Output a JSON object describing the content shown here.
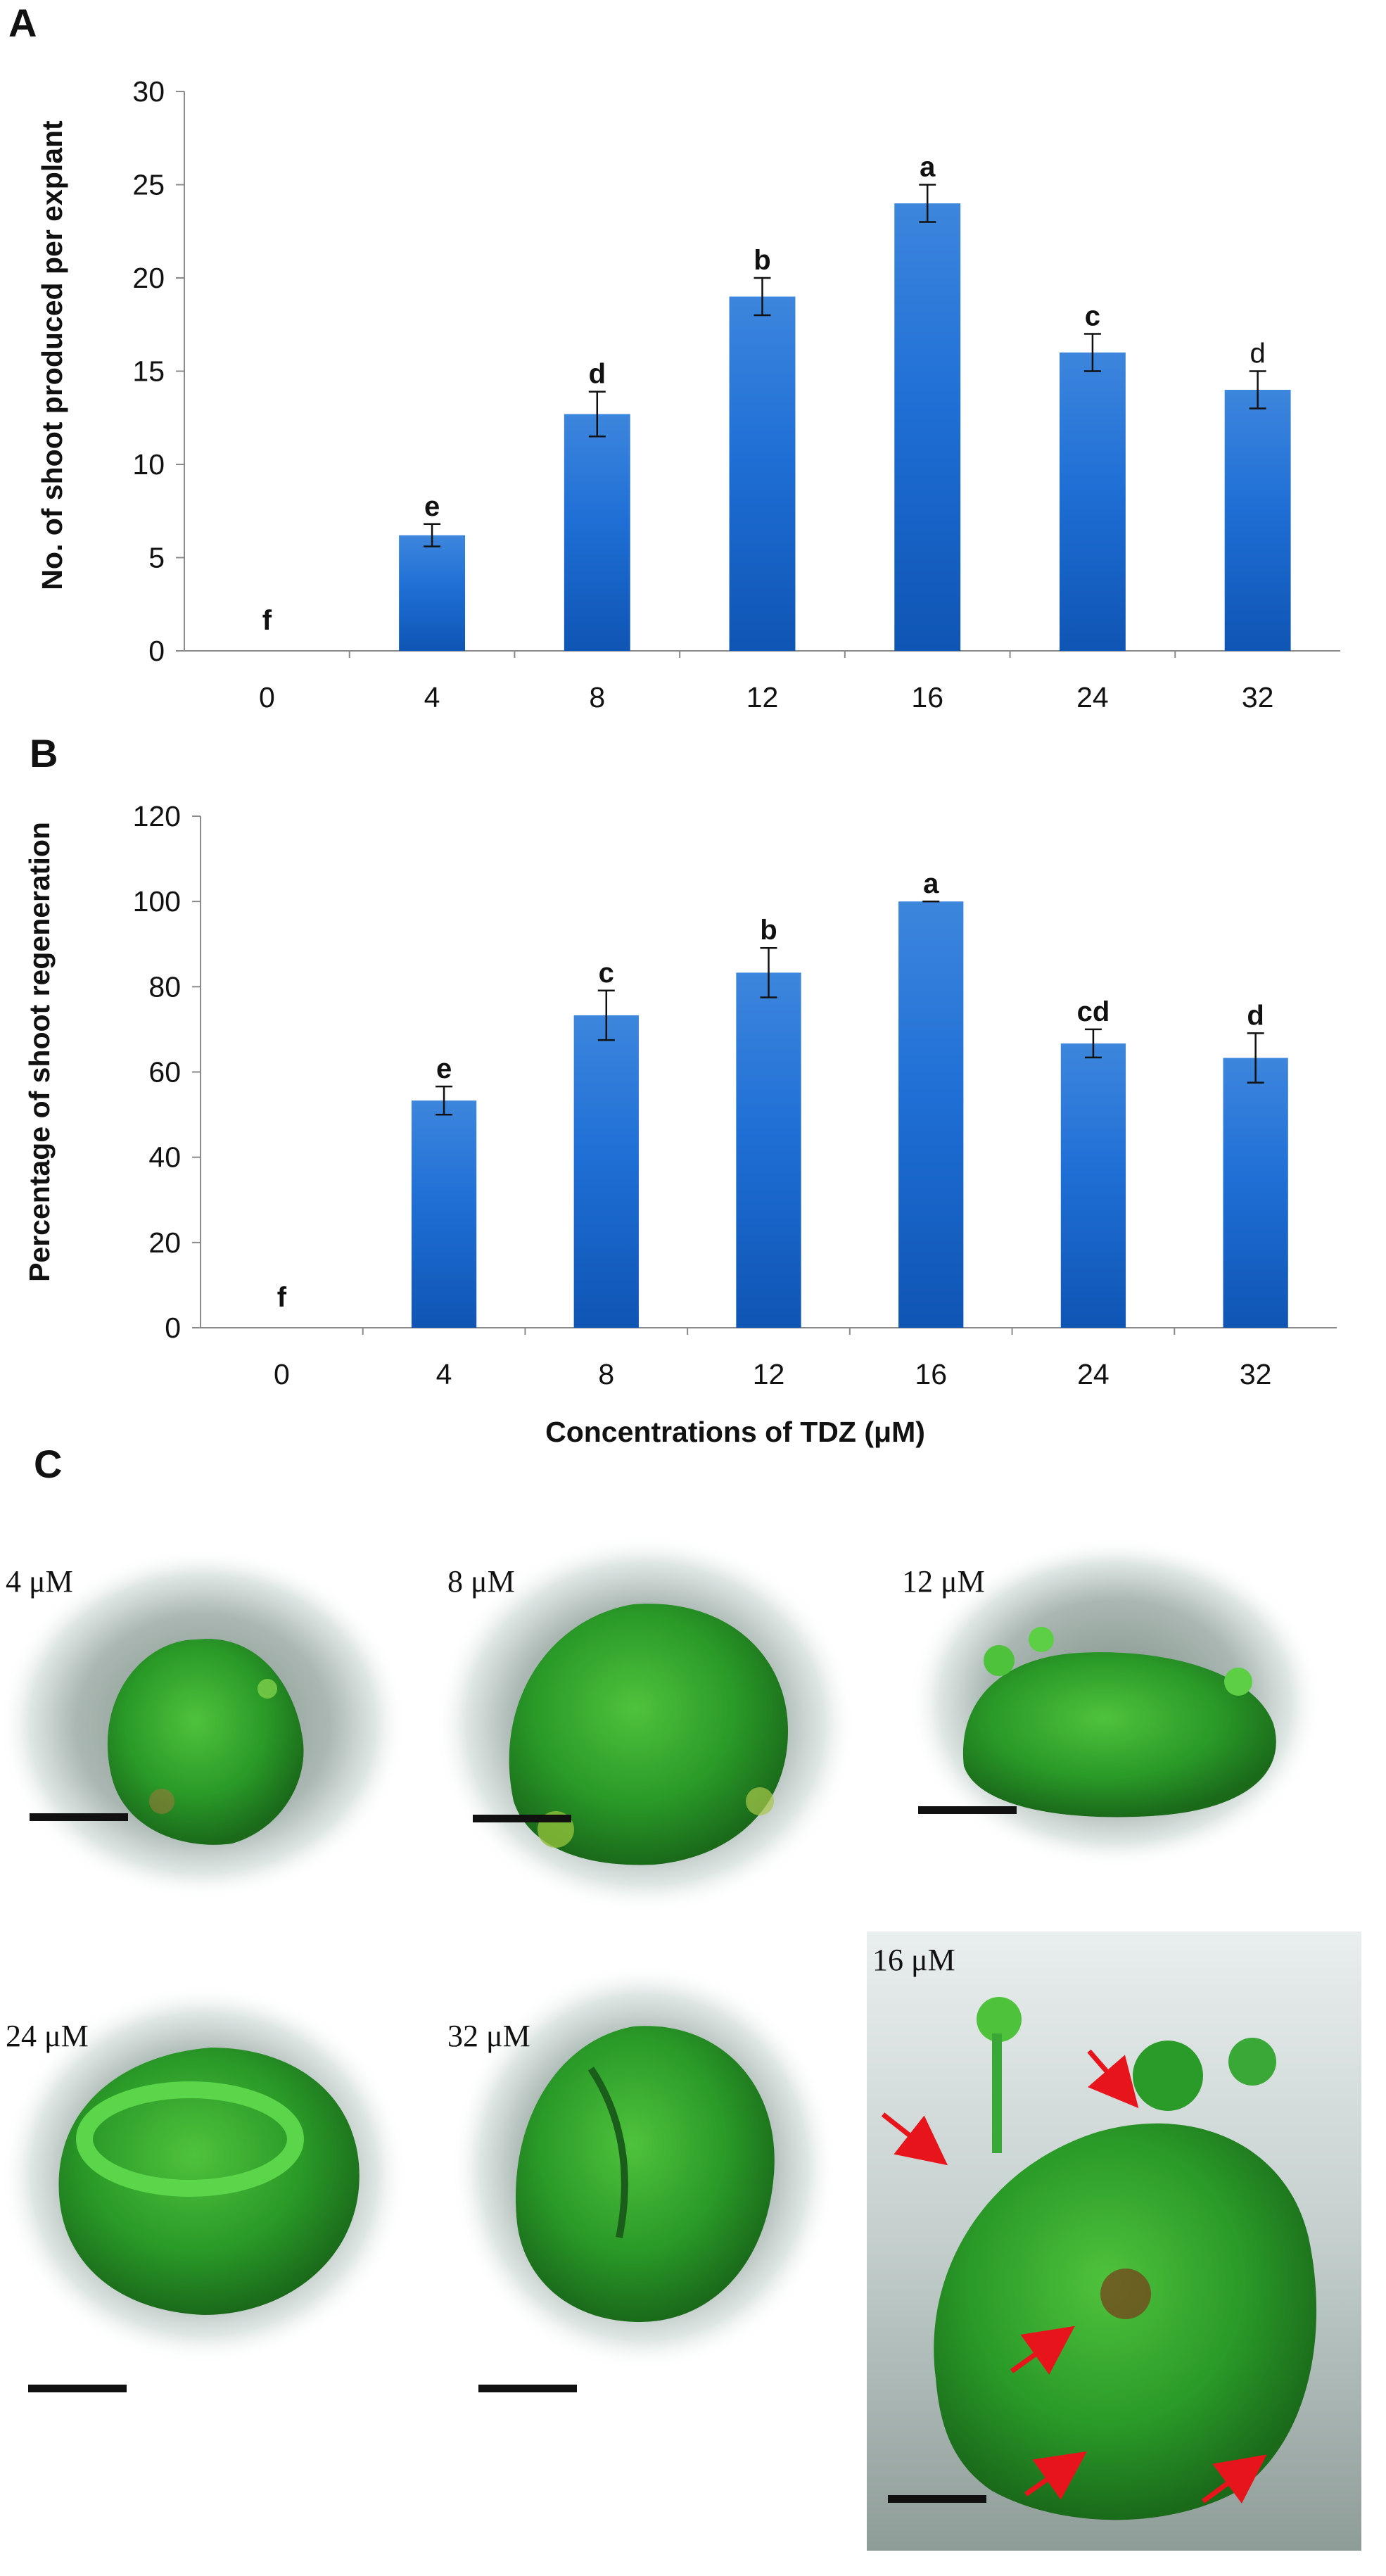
{
  "panel_letters": {
    "a": "A",
    "b": "B",
    "c": "C"
  },
  "chart_data": [
    {
      "type": "bar",
      "panel": "A",
      "title": "",
      "xlabel": "",
      "ylabel": "No. of shoot produced per explant",
      "categories": [
        "0",
        "4",
        "8",
        "12",
        "16",
        "24",
        "32"
      ],
      "values": [
        0,
        6.2,
        12.7,
        19,
        24,
        16,
        14
      ],
      "errors": [
        0,
        0.6,
        1.2,
        1.0,
        1.0,
        1.0,
        1.0
      ],
      "significance": [
        "f",
        "e",
        "d",
        "b",
        "a",
        "c",
        "d"
      ],
      "significance_bold": [
        true,
        true,
        true,
        true,
        true,
        true,
        false
      ],
      "ylim": [
        0,
        30
      ],
      "yticks": [
        "0",
        "5",
        "10",
        "15",
        "20",
        "25",
        "30"
      ],
      "grid": false,
      "bar_color": "#1f6fd6"
    },
    {
      "type": "bar",
      "panel": "B",
      "title": "",
      "xlabel": "Concentrations of TDZ (μM)",
      "ylabel": "Percentage of shoot regeneration",
      "categories": [
        "0",
        "4",
        "8",
        "12",
        "16",
        "24",
        "32"
      ],
      "values": [
        0,
        53.3,
        73.3,
        83.3,
        100,
        66.7,
        63.3
      ],
      "errors": [
        0,
        3.3,
        5.8,
        5.8,
        0,
        3.3,
        5.8
      ],
      "significance": [
        "f",
        "e",
        "c",
        "b",
        "a",
        "cd",
        "d"
      ],
      "significance_bold": [
        true,
        true,
        true,
        true,
        true,
        true,
        true
      ],
      "ylim": [
        0,
        120
      ],
      "yticks": [
        "0",
        "20",
        "40",
        "60",
        "80",
        "100",
        "120"
      ],
      "grid": false,
      "bar_color": "#1f6fd6"
    }
  ],
  "photos": [
    {
      "label": "4 μM"
    },
    {
      "label": "8 μM"
    },
    {
      "label": "12 μM"
    },
    {
      "label": "24 μM"
    },
    {
      "label": "32 μM"
    },
    {
      "label": "16 μM"
    }
  ],
  "colors": {
    "arrow": "#e8141c",
    "plant_dark": "#1e7a1e",
    "plant_light": "#4fc23c",
    "dish": "#cfd9d6"
  }
}
